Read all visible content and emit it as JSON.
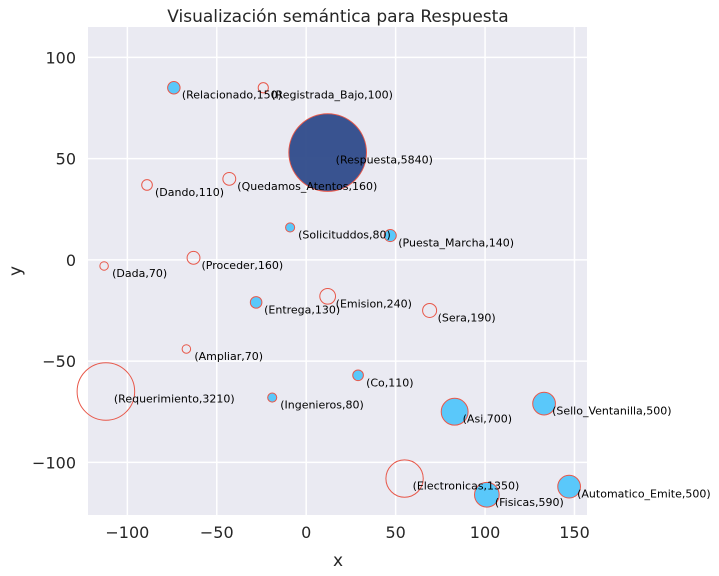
{
  "chart_data": {
    "type": "scatter",
    "title": "Visualización semántica para Respuesta",
    "xlabel": "x",
    "ylabel": "y",
    "xlim": [
      -122,
      157
    ],
    "ylim": [
      -126,
      115
    ],
    "xticks": [
      -100,
      -50,
      0,
      50,
      100,
      150
    ],
    "yticks": [
      -100,
      -50,
      0,
      50,
      100
    ],
    "xtick_labels": [
      "−100",
      "−50",
      "0",
      "50",
      "100",
      "150"
    ],
    "ytick_labels": [
      "−100",
      "−50",
      "0",
      "50",
      "100"
    ],
    "grid": true,
    "colors": {
      "background": "#eaeaf2",
      "grid": "#ffffff",
      "filled_point": "#5ac8fa",
      "main_point": "#2f4b8a",
      "edge": "#e8584a"
    },
    "points": [
      {
        "label": "(Relacionado,150)",
        "x": -74,
        "y": 85,
        "weight": 150,
        "style": "filled"
      },
      {
        "label": "(Registrada_Bajo,100)",
        "x": -24,
        "y": 85,
        "weight": 100,
        "style": "hollow"
      },
      {
        "label": "(Respuesta,5840)",
        "x": 12,
        "y": 53,
        "weight": 5840,
        "style": "main"
      },
      {
        "label": "(Dando,110)",
        "x": -89,
        "y": 37,
        "weight": 110,
        "style": "hollow"
      },
      {
        "label": "(Quedamos_Atentos,160)",
        "x": -43,
        "y": 40,
        "weight": 160,
        "style": "hollow"
      },
      {
        "label": "(Solicituddos,80)",
        "x": -9,
        "y": 16,
        "weight": 80,
        "style": "filled"
      },
      {
        "label": "(Puesta_Marcha,140)",
        "x": 47,
        "y": 12,
        "weight": 140,
        "style": "filled"
      },
      {
        "label": "(Dada,70)",
        "x": -113,
        "y": -3,
        "weight": 70,
        "style": "hollow"
      },
      {
        "label": "(Proceder,160)",
        "x": -63,
        "y": 1,
        "weight": 160,
        "style": "hollow"
      },
      {
        "label": "(Entrega,130)",
        "x": -28,
        "y": -21,
        "weight": 130,
        "style": "filled"
      },
      {
        "label": "(Emision,240)",
        "x": 12,
        "y": -18,
        "weight": 240,
        "style": "hollow"
      },
      {
        "label": "(Sera,190)",
        "x": 69,
        "y": -25,
        "weight": 190,
        "style": "hollow"
      },
      {
        "label": "(Ampliar,70)",
        "x": -67,
        "y": -44,
        "weight": 70,
        "style": "hollow"
      },
      {
        "label": "(Co,110)",
        "x": 29,
        "y": -57,
        "weight": 110,
        "style": "filled"
      },
      {
        "label": "(Requerimiento,3210)",
        "x": -112,
        "y": -65,
        "weight": 3210,
        "style": "hollow"
      },
      {
        "label": "(Ingenieros,80)",
        "x": -19,
        "y": -68,
        "weight": 80,
        "style": "filled"
      },
      {
        "label": "(Asi,700)",
        "x": 83,
        "y": -75,
        "weight": 700,
        "style": "filled"
      },
      {
        "label": "(Sello_Ventanilla,500)",
        "x": 133,
        "y": -71,
        "weight": 500,
        "style": "filled"
      },
      {
        "label": "(Electronicas,1350)",
        "x": 55,
        "y": -108,
        "weight": 1350,
        "style": "hollow"
      },
      {
        "label": "(Fisicas,590)",
        "x": 101,
        "y": -116,
        "weight": 590,
        "style": "filled"
      },
      {
        "label": "(Automatico_Emite,500)",
        "x": 147,
        "y": -112,
        "weight": 500,
        "style": "filled"
      }
    ]
  }
}
